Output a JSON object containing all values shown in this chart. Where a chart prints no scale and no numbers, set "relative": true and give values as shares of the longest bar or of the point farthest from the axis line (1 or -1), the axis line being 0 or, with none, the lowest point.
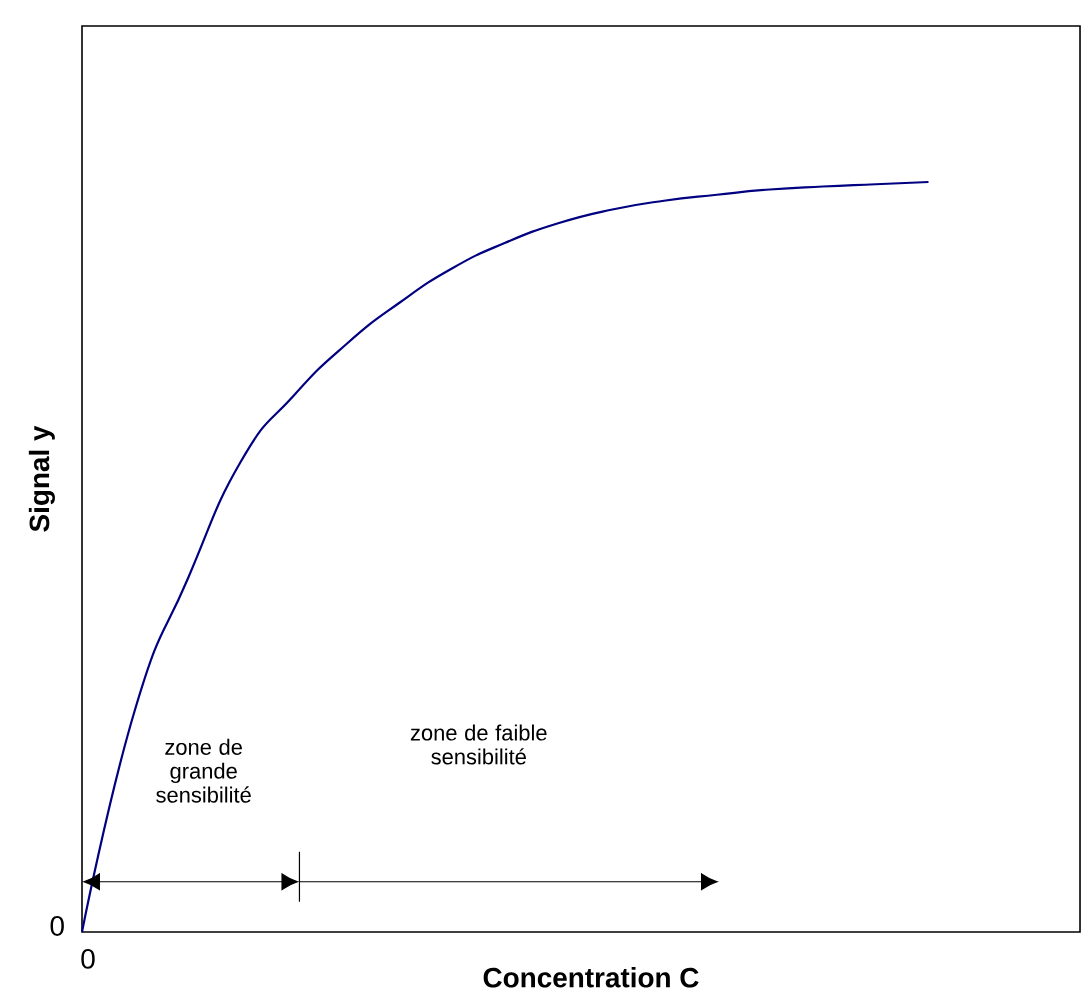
{
  "chart_data": {
    "type": "line",
    "relative": true,
    "xlabel": "Concentration C",
    "ylabel": "Signal y",
    "categories": [
      null,
      null,
      null,
      null,
      null,
      null,
      null,
      null,
      null,
      null,
      null,
      null,
      null,
      null,
      null,
      null,
      null
    ],
    "series": [
      {
        "color": "#000080",
        "values": [
          0,
          0.296,
          0.471,
          0.627,
          0.715,
          0.784,
          0.839,
          0.885,
          0.919,
          0.945,
          0.963,
          0.975,
          0.983,
          0.99,
          0.994,
          0.997,
          1
        ]
      }
    ],
    "annotations": [
      "zone de grande sensibilité",
      "zone de faible sensibilité",
      "0",
      "0"
    ],
    "marker": "none",
    "line_style": "solid"
  }
}
